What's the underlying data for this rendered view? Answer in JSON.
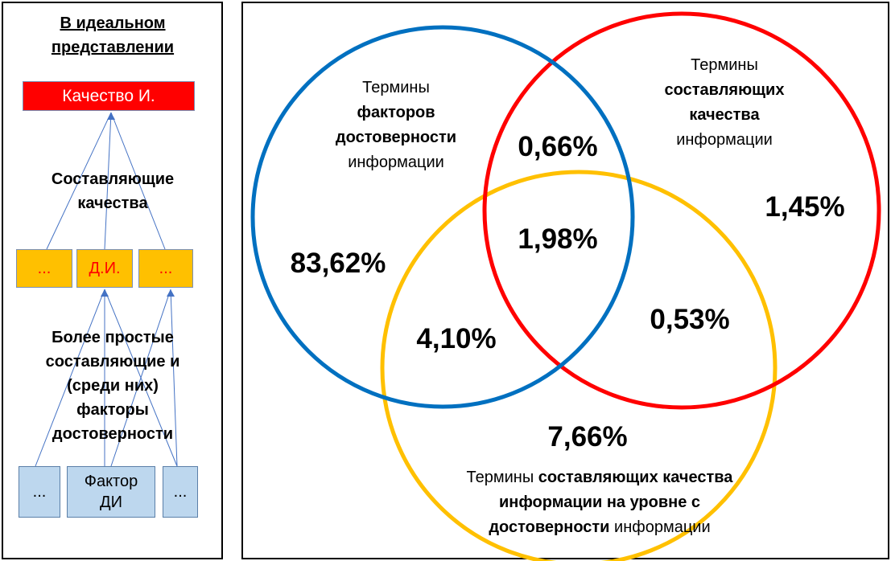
{
  "left": {
    "heading": "В идеальном представлении",
    "top_box": "Качество И.",
    "mid_label": "Составляющие качества",
    "mid_boxes": [
      "...",
      "Д.И.",
      "..."
    ],
    "low_label": "Более простые составляющие и (среди них) факторы достоверности",
    "bottom_boxes": [
      "...",
      "Фактор ДИ",
      "..."
    ]
  },
  "venn": {
    "blue_term": {
      "prefix": "Термины",
      "bold": "факторов достоверности",
      "suffix": "информации"
    },
    "red_term": {
      "prefix": "Термины",
      "bold": "составляющих качества",
      "suffix": "информации"
    },
    "yellow_term": {
      "prefix": "Термины",
      "bold": "составляющих качества информации на уровне с достоверности",
      "suffix": "информации"
    },
    "values": {
      "blue_only": "83,62%",
      "red_only": "1,45%",
      "yellow_only": "7,66%",
      "blue_red": "0,66%",
      "blue_yellow": "4,10%",
      "red_yellow": "0,53%",
      "all_three": "1,98%"
    },
    "colors": {
      "blue": "#0070C0",
      "red": "#FF0000",
      "yellow": "#FFC000"
    }
  }
}
